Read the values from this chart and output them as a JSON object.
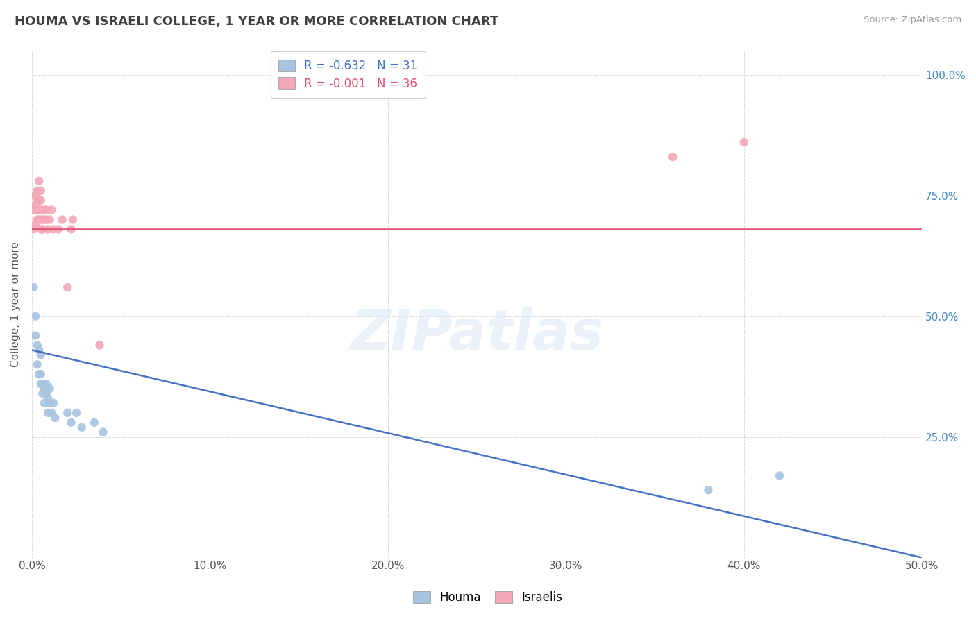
{
  "title": "HOUMA VS ISRAELI COLLEGE, 1 YEAR OR MORE CORRELATION CHART",
  "source": "Source: ZipAtlas.com",
  "ylabel": "College, 1 year or more",
  "xlim": [
    0.0,
    0.5
  ],
  "ylim": [
    0.0,
    1.05
  ],
  "xticks": [
    0.0,
    0.1,
    0.2,
    0.3,
    0.4,
    0.5
  ],
  "xticklabels": [
    "0.0%",
    "10.0%",
    "20.0%",
    "30.0%",
    "40.0%",
    "50.0%"
  ],
  "yticks": [
    0.0,
    0.25,
    0.5,
    0.75,
    1.0
  ],
  "yticklabels_right": [
    "",
    "25.0%",
    "50.0%",
    "75.0%",
    "100.0%"
  ],
  "houma_R": -0.632,
  "houma_N": 31,
  "israelis_R": -0.001,
  "israelis_N": 36,
  "houma_color": "#a8c4e0",
  "israelis_color": "#f4a8b8",
  "houma_line_color": "#4472c4",
  "israelis_line_color": "#e05070",
  "background_color": "#ffffff",
  "grid_color": "#c8c8c8",
  "title_color": "#404040",
  "watermark_text": "ZIPatlas",
  "houma_x": [
    0.001,
    0.002,
    0.002,
    0.003,
    0.003,
    0.004,
    0.004,
    0.005,
    0.005,
    0.005,
    0.006,
    0.006,
    0.007,
    0.007,
    0.008,
    0.008,
    0.009,
    0.009,
    0.01,
    0.01,
    0.011,
    0.012,
    0.013,
    0.02,
    0.022,
    0.025,
    0.028,
    0.035,
    0.04,
    0.38,
    0.42
  ],
  "houma_y": [
    0.56,
    0.5,
    0.46,
    0.44,
    0.4,
    0.43,
    0.38,
    0.42,
    0.36,
    0.38,
    0.34,
    0.36,
    0.35,
    0.32,
    0.34,
    0.36,
    0.33,
    0.3,
    0.35,
    0.32,
    0.3,
    0.32,
    0.29,
    0.3,
    0.28,
    0.3,
    0.27,
    0.28,
    0.26,
    0.14,
    0.17
  ],
  "israelis_x": [
    0.001,
    0.001,
    0.002,
    0.002,
    0.002,
    0.003,
    0.003,
    0.003,
    0.003,
    0.004,
    0.004,
    0.004,
    0.004,
    0.005,
    0.005,
    0.005,
    0.005,
    0.005,
    0.006,
    0.006,
    0.007,
    0.007,
    0.008,
    0.008,
    0.009,
    0.01,
    0.011,
    0.012,
    0.015,
    0.017,
    0.02,
    0.022,
    0.023,
    0.038,
    0.36,
    0.4
  ],
  "israelis_y": [
    0.68,
    0.72,
    0.69,
    0.73,
    0.75,
    0.7,
    0.72,
    0.74,
    0.76,
    0.7,
    0.72,
    0.74,
    0.78,
    0.68,
    0.7,
    0.72,
    0.74,
    0.76,
    0.68,
    0.7,
    0.7,
    0.72,
    0.7,
    0.72,
    0.68,
    0.7,
    0.72,
    0.68,
    0.68,
    0.7,
    0.56,
    0.68,
    0.7,
    0.44,
    0.83,
    0.86
  ],
  "houma_line_x0": 0.0,
  "houma_line_x1": 0.5,
  "houma_line_y0": 0.43,
  "houma_line_y1": 0.0,
  "israelis_line_x0": 0.0,
  "israelis_line_x1": 0.5,
  "israelis_line_y0": 0.68,
  "israelis_line_y1": 0.68,
  "houma_marker_size": 80,
  "israelis_marker_size": 80,
  "legend_box_color_houma": "#a8c4e0",
  "legend_box_color_israelis": "#f4a8b8"
}
